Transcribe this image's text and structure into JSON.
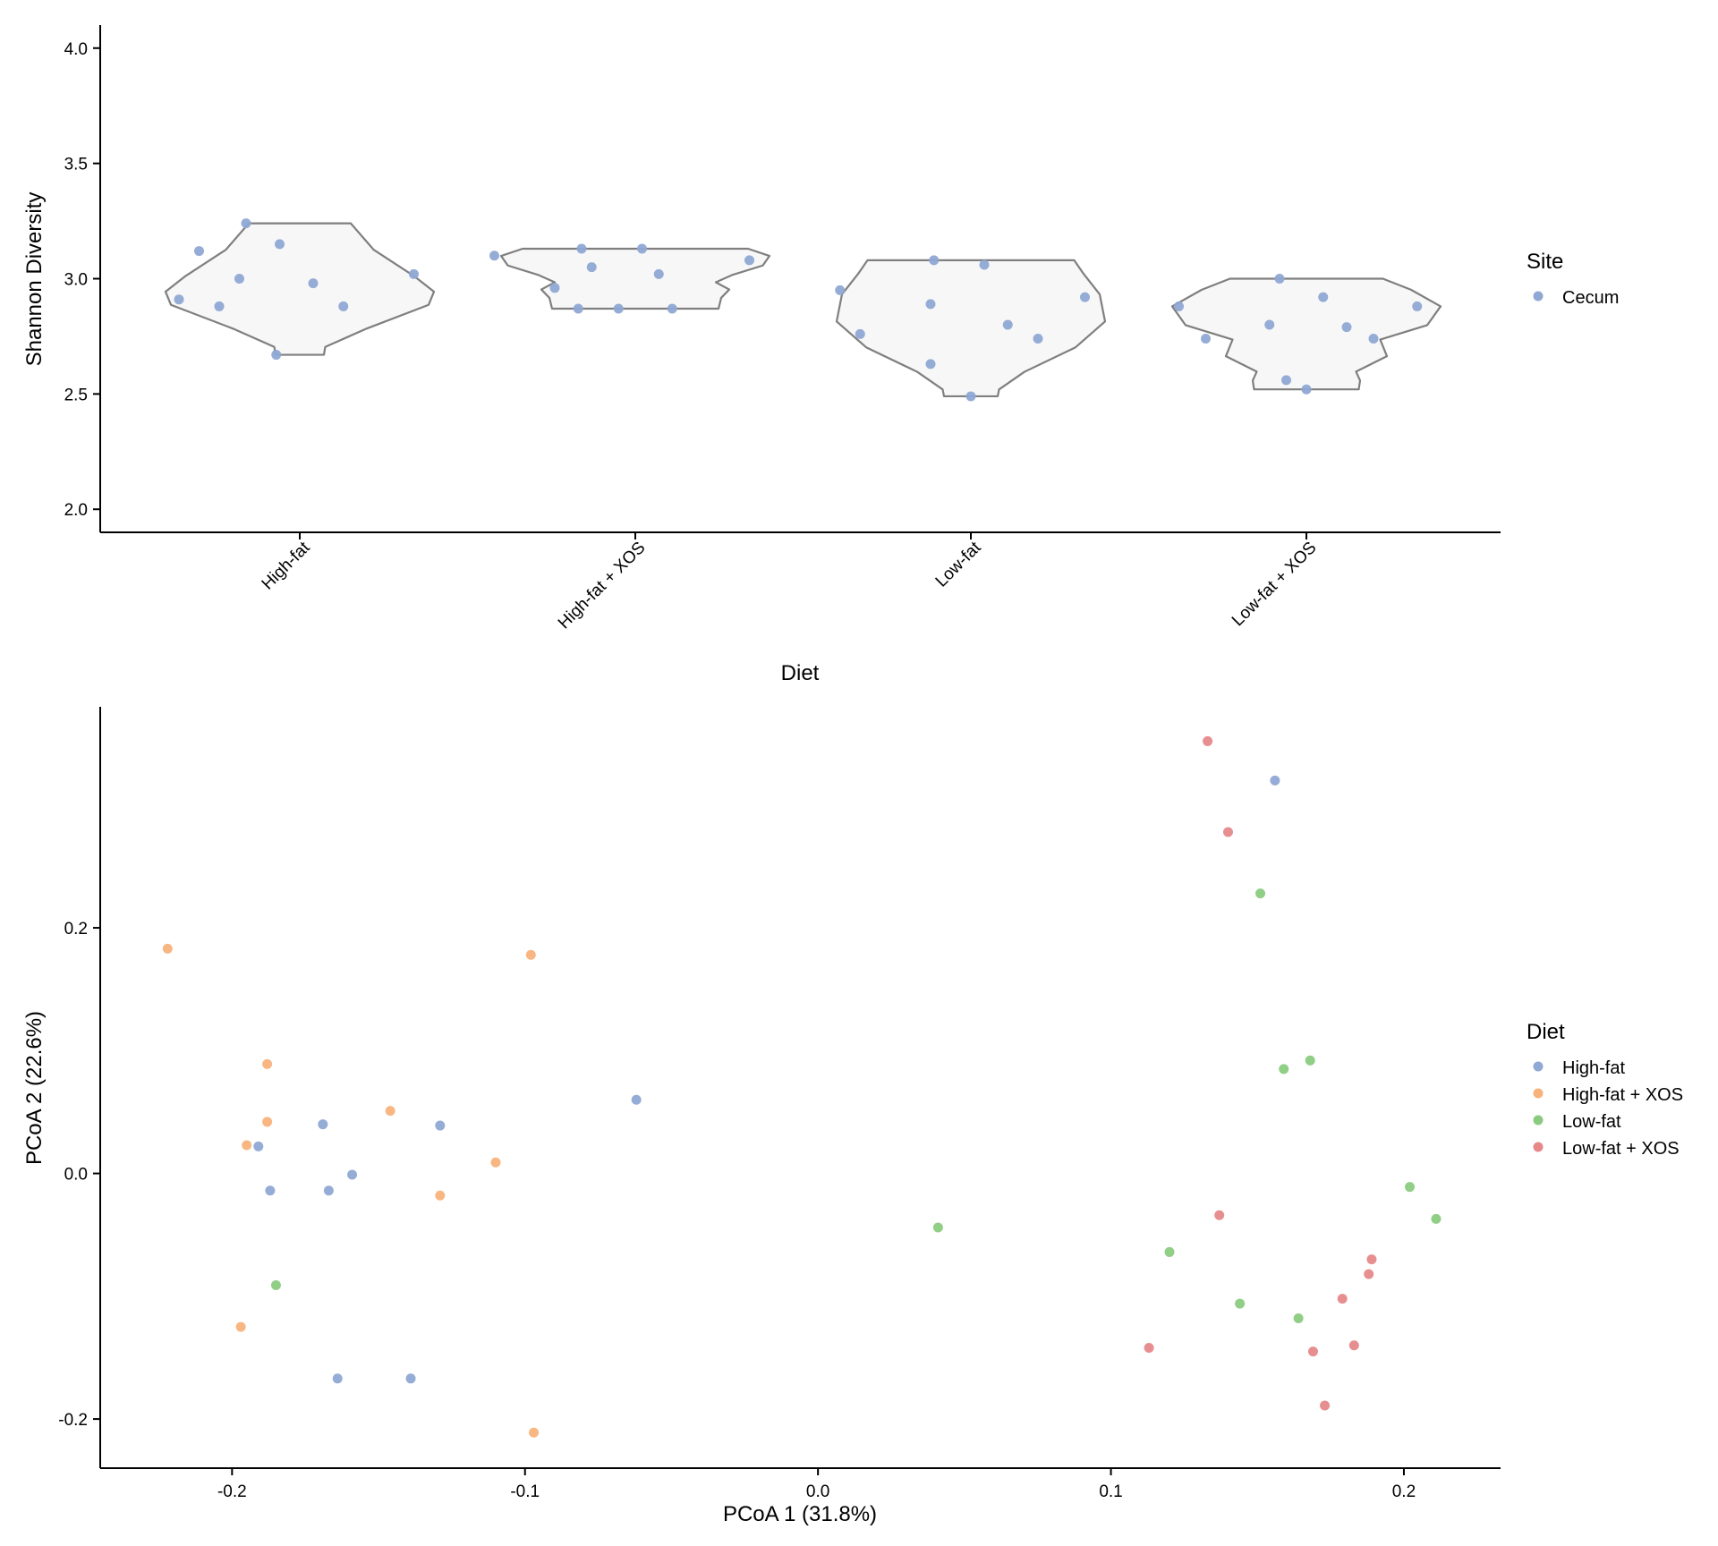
{
  "chart_data": [
    {
      "type": "violin",
      "xlabel": "Diet",
      "ylabel": "Shannon Diversity",
      "ylim": [
        1.9,
        4.1
      ],
      "yticks": [
        2.0,
        2.5,
        3.0,
        3.5,
        4.0
      ],
      "yticklabels": [
        "2.0",
        "2.5",
        "3.0",
        "3.5",
        "4.0"
      ],
      "categories": [
        "High-fat",
        "High-fat + XOS",
        "Low-fat",
        "Low-fat + XOS"
      ],
      "grid": false,
      "legend": {
        "title": "Site",
        "placement": "right",
        "entries": [
          {
            "label": "Cecum",
            "color": "#8FA8D4"
          }
        ]
      },
      "violin_color": {
        "fill": "#F7F7F7",
        "stroke": "#7F7F7F"
      },
      "series": [
        {
          "category": "High-fat",
          "ymin": 2.67,
          "ymax": 3.24,
          "points": [
            {
              "jitter": -0.3,
              "y": 3.12
            },
            {
              "jitter": -0.16,
              "y": 3.24
            },
            {
              "jitter": -0.06,
              "y": 3.15
            },
            {
              "jitter": -0.18,
              "y": 3.0
            },
            {
              "jitter": 0.04,
              "y": 2.98
            },
            {
              "jitter": 0.34,
              "y": 3.02
            },
            {
              "jitter": -0.36,
              "y": 2.91
            },
            {
              "jitter": -0.24,
              "y": 2.88
            },
            {
              "jitter": 0.13,
              "y": 2.88
            },
            {
              "jitter": -0.07,
              "y": 2.67
            }
          ]
        },
        {
          "category": "High-fat + XOS",
          "ymin": 2.87,
          "ymax": 3.13,
          "points": [
            {
              "jitter": -0.42,
              "y": 3.1
            },
            {
              "jitter": -0.16,
              "y": 3.13
            },
            {
              "jitter": 0.02,
              "y": 3.13
            },
            {
              "jitter": 0.34,
              "y": 3.08
            },
            {
              "jitter": -0.13,
              "y": 3.05
            },
            {
              "jitter": 0.07,
              "y": 3.02
            },
            {
              "jitter": -0.24,
              "y": 2.96
            },
            {
              "jitter": -0.17,
              "y": 2.87
            },
            {
              "jitter": -0.05,
              "y": 2.87
            },
            {
              "jitter": 0.11,
              "y": 2.87
            }
          ]
        },
        {
          "category": "Low-fat",
          "ymin": 2.49,
          "ymax": 3.08,
          "points": [
            {
              "jitter": -0.39,
              "y": 2.95
            },
            {
              "jitter": -0.11,
              "y": 3.08
            },
            {
              "jitter": 0.04,
              "y": 3.06
            },
            {
              "jitter": 0.34,
              "y": 2.92
            },
            {
              "jitter": -0.12,
              "y": 2.89
            },
            {
              "jitter": 0.11,
              "y": 2.8
            },
            {
              "jitter": -0.33,
              "y": 2.76
            },
            {
              "jitter": 0.2,
              "y": 2.74
            },
            {
              "jitter": -0.12,
              "y": 2.63
            },
            {
              "jitter": 0.0,
              "y": 2.49
            }
          ]
        },
        {
          "category": "Low-fat + XOS",
          "ymin": 2.52,
          "ymax": 3.0,
          "points": [
            {
              "jitter": -0.38,
              "y": 2.88
            },
            {
              "jitter": -0.08,
              "y": 3.0
            },
            {
              "jitter": 0.05,
              "y": 2.92
            },
            {
              "jitter": 0.33,
              "y": 2.88
            },
            {
              "jitter": -0.11,
              "y": 2.8
            },
            {
              "jitter": 0.12,
              "y": 2.79
            },
            {
              "jitter": -0.3,
              "y": 2.74
            },
            {
              "jitter": 0.2,
              "y": 2.74
            },
            {
              "jitter": -0.06,
              "y": 2.56
            },
            {
              "jitter": 0.0,
              "y": 2.52
            }
          ]
        }
      ]
    },
    {
      "type": "scatter",
      "xlabel": "PCoA 1 (31.8%)",
      "ylabel": "PCoA 2 (22.6%)",
      "xlim": [
        -0.245,
        0.233
      ],
      "ylim": [
        -0.24,
        0.38
      ],
      "xticks": [
        -0.2,
        -0.1,
        0.0,
        0.1,
        0.2
      ],
      "xticklabels": [
        "-0.2",
        "-0.1",
        "0.0",
        "0.1",
        "0.2"
      ],
      "yticks": [
        -0.2,
        0.0,
        0.2
      ],
      "yticklabels": [
        "-0.2",
        "0.0",
        "0.2"
      ],
      "grid": false,
      "legend": {
        "title": "Diet",
        "placement": "right"
      },
      "series": [
        {
          "name": "High-fat",
          "color": "#8FA8D4",
          "x": [
            -0.191,
            -0.169,
            -0.129,
            -0.062,
            -0.187,
            -0.167,
            -0.159,
            -0.164,
            -0.139,
            0.156
          ],
          "y": [
            0.022,
            0.04,
            0.039,
            0.06,
            -0.014,
            -0.014,
            -0.001,
            -0.167,
            -0.167,
            0.32
          ]
        },
        {
          "name": "High-fat + XOS",
          "color": "#F8B27B",
          "x": [
            -0.222,
            -0.098,
            -0.188,
            -0.188,
            -0.195,
            -0.146,
            -0.11,
            -0.129,
            -0.197,
            -0.097
          ],
          "y": [
            0.183,
            0.178,
            0.089,
            0.042,
            0.023,
            0.051,
            0.009,
            -0.018,
            -0.125,
            -0.211
          ]
        },
        {
          "name": "Low-fat",
          "color": "#8BCB80",
          "x": [
            0.151,
            0.168,
            0.159,
            0.202,
            0.211,
            0.041,
            0.12,
            0.144,
            0.164,
            -0.185
          ],
          "y": [
            0.228,
            0.092,
            0.085,
            -0.011,
            -0.037,
            -0.044,
            -0.064,
            -0.106,
            -0.118,
            -0.091
          ]
        },
        {
          "name": "Low-fat + XOS",
          "color": "#E6888A",
          "x": [
            0.133,
            0.14,
            0.137,
            0.189,
            0.188,
            0.179,
            0.183,
            0.113,
            0.169,
            0.173
          ],
          "y": [
            0.352,
            0.278,
            -0.034,
            -0.07,
            -0.082,
            -0.102,
            -0.14,
            -0.142,
            -0.145,
            -0.189
          ]
        }
      ]
    }
  ]
}
